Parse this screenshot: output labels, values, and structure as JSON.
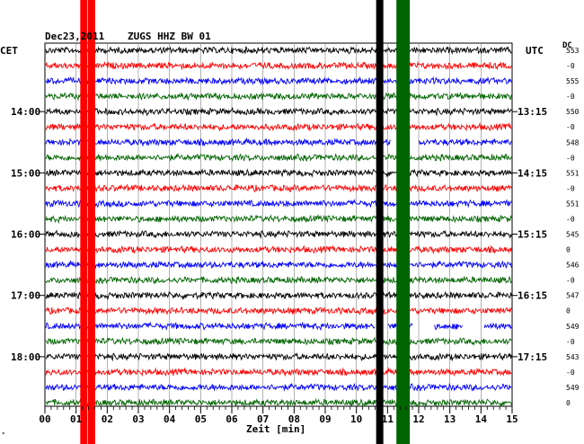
{
  "header": {
    "date": "Dec23,2011",
    "station": "ZUGS HHZ BW 01",
    "left_zone": "CET",
    "right_zone": "UTC",
    "dc_label": "DC"
  },
  "chart_data": {
    "type": "line",
    "title": "Dec23,2011    ZUGS HHZ BW 01",
    "xlabel": "Zeit [min]",
    "xlim": [
      0,
      15
    ],
    "x_ticks": [
      "00",
      "01",
      "02",
      "03",
      "04",
      "05",
      "06",
      "07",
      "08",
      "09",
      "10",
      "11",
      "12",
      "13",
      "14",
      "15"
    ],
    "trace_count": 24,
    "trace_colors": [
      "#000000",
      "#ff0000",
      "#0000ff",
      "#006400"
    ],
    "left_hour_labels": [
      {
        "label": "14:00",
        "trace": 4
      },
      {
        "label": "15:00",
        "trace": 8
      },
      {
        "label": "16:00",
        "trace": 12
      },
      {
        "label": "17:00",
        "trace": 16
      },
      {
        "label": "18:00",
        "trace": 20
      }
    ],
    "right_hour_labels": [
      {
        "label": "13:15",
        "trace": 4
      },
      {
        "label": "14:15",
        "trace": 8
      },
      {
        "label": "15:15",
        "trace": 12
      },
      {
        "label": "16:15",
        "trace": 16
      },
      {
        "label": "17:15",
        "trace": 20
      }
    ],
    "dc_values": [
      "553",
      "-0",
      "555",
      "-0",
      "550",
      "-0",
      "548",
      "-0",
      "551",
      "-0",
      "551",
      "-0",
      "545",
      "0",
      "546",
      "-0",
      "547",
      "0",
      "549",
      "-0",
      "543",
      "-0",
      "549",
      "0"
    ],
    "vertical_bands": [
      {
        "minute": 1.25,
        "color": "#ff0000"
      },
      {
        "minute": 1.5,
        "color": "#ff0000"
      },
      {
        "minute": 10.75,
        "color": "#000000"
      },
      {
        "minute": 11.4,
        "color": "#006400"
      },
      {
        "minute": 11.6,
        "color": "#006400"
      }
    ],
    "data_gaps": [
      {
        "trace": 6,
        "from": 11.1,
        "to": 12.0
      },
      {
        "trace": 18,
        "from": 10.6,
        "to": 11.0
      },
      {
        "trace": 18,
        "from": 11.8,
        "to": 12.5
      },
      {
        "trace": 18,
        "from": 13.4,
        "to": 14.1
      }
    ],
    "grid": true
  }
}
